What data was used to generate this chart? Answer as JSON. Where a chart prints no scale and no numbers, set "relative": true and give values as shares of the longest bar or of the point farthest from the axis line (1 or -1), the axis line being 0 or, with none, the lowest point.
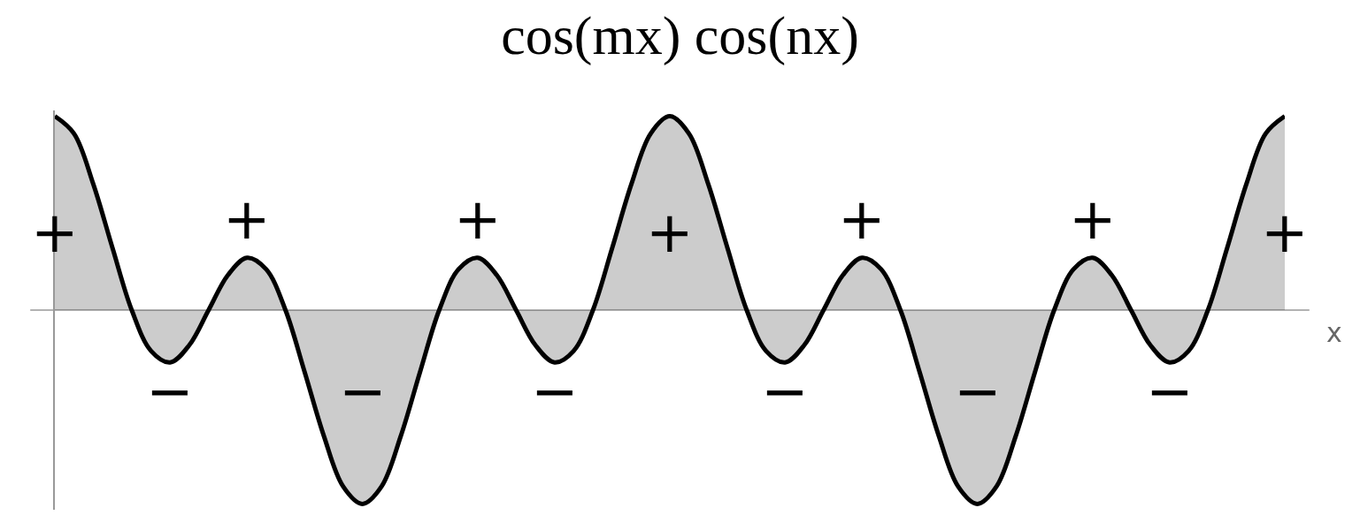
{
  "chart_data": {
    "type": "area",
    "title": "cos(mx) cos(nx)",
    "xlabel": "x",
    "relative": true,
    "categories": [
      null,
      null,
      null,
      null,
      null,
      null,
      null,
      null,
      null,
      null,
      null,
      null,
      null,
      null,
      null,
      null,
      null,
      null,
      null,
      null,
      null,
      null,
      null,
      null,
      null,
      null,
      null,
      null,
      null,
      null,
      null,
      null,
      null,
      null,
      null,
      null,
      null,
      null,
      null,
      null,
      null,
      null,
      null,
      null,
      null,
      null,
      null,
      null,
      null,
      null,
      null,
      null,
      null,
      null,
      null,
      null,
      null,
      null,
      null,
      null,
      null,
      null,
      null,
      null,
      null
    ],
    "series": [
      {
        "color": "#000000",
        "values": [
          1,
          0.91,
          0.65,
          0.32,
          0,
          -0.21,
          -0.27,
          -0.18,
          0,
          0.18,
          0.27,
          0.21,
          0,
          -0.32,
          -0.65,
          -0.91,
          -1,
          -0.91,
          -0.65,
          -0.32,
          0,
          0.21,
          0.27,
          0.18,
          0,
          -0.18,
          -0.27,
          -0.21,
          0,
          0.32,
          0.65,
          0.91,
          1,
          0.91,
          0.65,
          0.32,
          0,
          -0.21,
          -0.27,
          -0.18,
          0,
          0.18,
          0.27,
          0.21,
          0,
          -0.32,
          -0.65,
          -0.91,
          -1,
          -0.91,
          -0.65,
          -0.32,
          0,
          0.21,
          0.27,
          0.18,
          0,
          -0.18,
          -0.27,
          -0.21,
          0,
          0.32,
          0.65,
          0.91,
          1
        ]
      }
    ],
    "annotations": [
      "+",
      "−",
      "+",
      "−",
      "+",
      "−",
      "+",
      "−",
      "+",
      "−",
      "+",
      "−",
      "+"
    ]
  }
}
